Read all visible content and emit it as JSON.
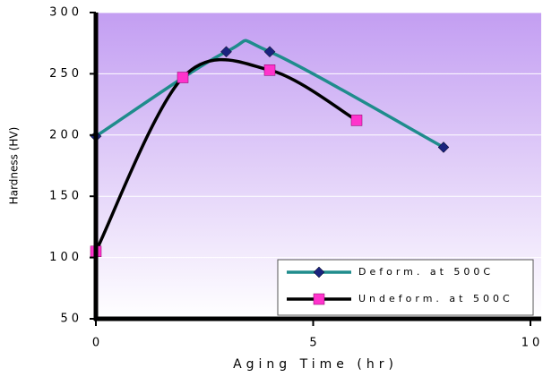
{
  "chart_data": {
    "type": "line",
    "x_label": "Aging Time (hr)",
    "y_label": "Hardness (HV)",
    "xlim": [
      0,
      10
    ],
    "xticks": [
      0,
      5,
      10
    ],
    "ylim": [
      50,
      300
    ],
    "yticks": [
      50,
      100,
      150,
      200,
      250,
      300
    ],
    "grid": true,
    "smooth": true,
    "legend": "lower right",
    "series": [
      {
        "name": "Deform. at 500C",
        "color": "#1f8c8c",
        "marker_color": "#1a237e",
        "marker": "diamond",
        "x": [
          0,
          3,
          4,
          8
        ],
        "values": [
          199,
          268,
          268,
          190
        ]
      },
      {
        "name": "Undeform. at 500C",
        "color": "#000000",
        "marker_color": "#ff33cc",
        "marker": "square",
        "x": [
          0,
          2,
          4,
          6
        ],
        "values": [
          105,
          247,
          253,
          212
        ]
      }
    ]
  }
}
